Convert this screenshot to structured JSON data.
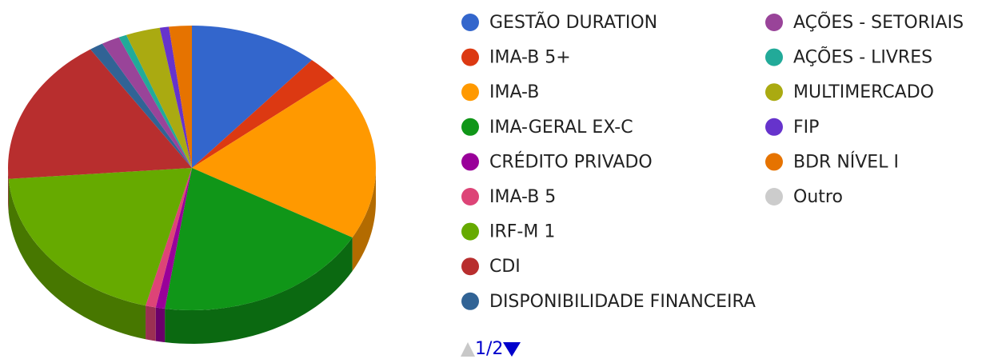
{
  "chart_data": {
    "type": "pie3d",
    "categories": [
      "GESTÃO DURATION",
      "IMA-B 5+",
      "IMA-B",
      "IMA-GERAL EX-C",
      "CRÉDITO PRIVADO",
      "IMA-B 5",
      "IRF-M 1",
      "CDI",
      "DISPONIBILIDADE FINANCEIRA",
      "AÇÕES - SETORIAIS",
      "AÇÕES - LIVRES",
      "MULTIMERCADO",
      "FIP",
      "BDR NÍVEL I",
      "Outro"
    ],
    "values": [
      11.3,
      2.8,
      19,
      19.2,
      0.8,
      0.9,
      19.7,
      16.9,
      1.2,
      1.6,
      0.7,
      3,
      0.8,
      2,
      0
    ],
    "colors": [
      "#3366cc",
      "#dc3912",
      "#ff9900",
      "#109618",
      "#990099",
      "#dd4477",
      "#66aa00",
      "#b82e2e",
      "#316395",
      "#994499",
      "#22aa99",
      "#aaaa11",
      "#6633cc",
      "#e67300",
      "#cccccc"
    ],
    "pager": "1/2"
  }
}
